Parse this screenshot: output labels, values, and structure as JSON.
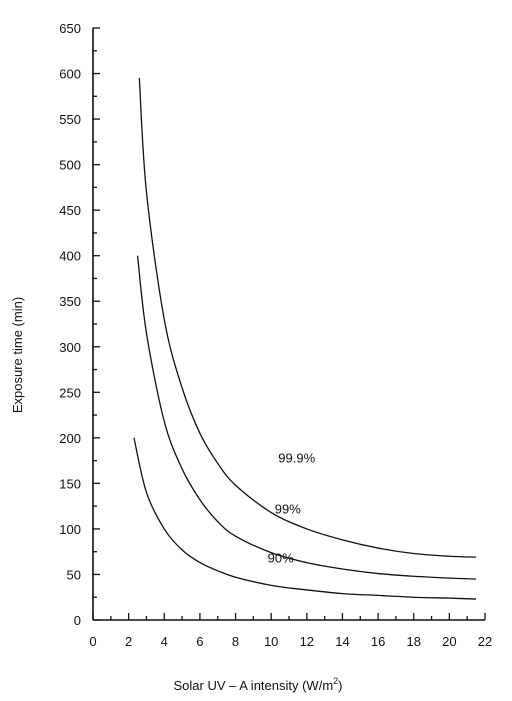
{
  "chart_data": {
    "type": "line",
    "xlabel": "Solar UV – A intensity (W/m",
    "xlabel_sup": "2",
    "xlabel_end": ")",
    "ylabel": "Exposure time (min)",
    "xlim": [
      0,
      22
    ],
    "ylim": [
      0,
      650
    ],
    "x_ticks": [
      "0",
      "2",
      "4",
      "6",
      "8",
      "10",
      "12",
      "14",
      "16",
      "18",
      "20",
      "22"
    ],
    "y_ticks": [
      "0",
      "50",
      "100",
      "150",
      "200",
      "250",
      "300",
      "350",
      "400",
      "450",
      "500",
      "550",
      "600",
      "650"
    ],
    "grid": false,
    "legend": "none",
    "series": [
      {
        "name": "99.9%",
        "label_at": [
          10.4,
          173
        ],
        "points": [
          [
            2.6,
            595
          ],
          [
            3,
            470
          ],
          [
            4,
            330
          ],
          [
            5,
            255
          ],
          [
            6,
            205
          ],
          [
            7,
            172
          ],
          [
            8,
            148
          ],
          [
            10,
            118
          ],
          [
            12,
            100
          ],
          [
            14,
            88
          ],
          [
            16,
            79
          ],
          [
            18,
            73
          ],
          [
            20,
            70
          ],
          [
            21.5,
            69
          ]
        ]
      },
      {
        "name": "99%",
        "label_at": [
          10.2,
          117
        ],
        "points": [
          [
            2.5,
            400
          ],
          [
            3,
            315
          ],
          [
            4,
            218
          ],
          [
            5,
            166
          ],
          [
            6,
            132
          ],
          [
            7,
            108
          ],
          [
            8,
            92
          ],
          [
            10,
            74
          ],
          [
            12,
            63
          ],
          [
            14,
            56
          ],
          [
            16,
            51
          ],
          [
            18,
            48
          ],
          [
            20,
            46
          ],
          [
            21.5,
            45
          ]
        ]
      },
      {
        "name": "90%",
        "label_at": [
          9.8,
          63
        ],
        "points": [
          [
            2.3,
            200
          ],
          [
            3,
            140
          ],
          [
            4,
            100
          ],
          [
            5,
            77
          ],
          [
            6,
            63
          ],
          [
            7,
            54
          ],
          [
            8,
            47
          ],
          [
            10,
            38
          ],
          [
            12,
            33
          ],
          [
            14,
            29
          ],
          [
            16,
            27
          ],
          [
            18,
            25
          ],
          [
            20,
            24
          ],
          [
            21.5,
            23
          ]
        ]
      }
    ]
  }
}
